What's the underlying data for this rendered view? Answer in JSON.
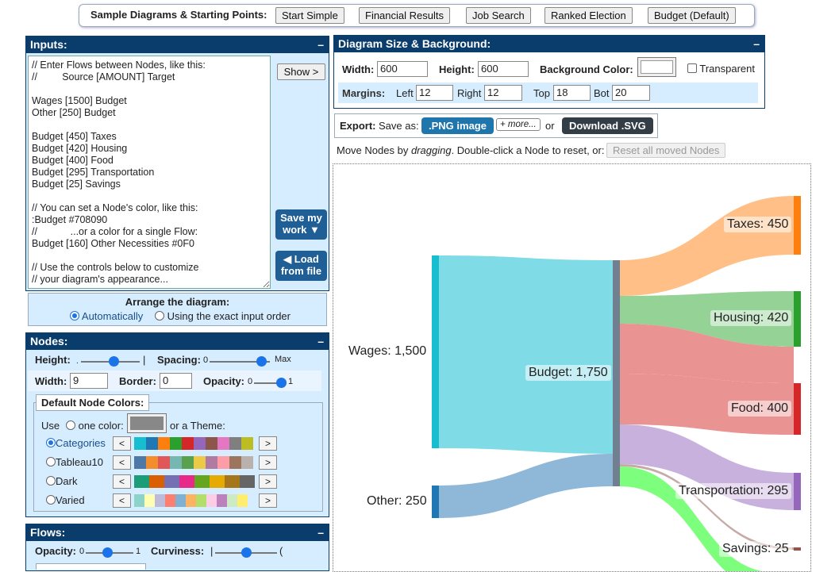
{
  "samples": {
    "title": "Sample Diagrams & Starting Points:",
    "buttons": [
      "Start Simple",
      "Financial Results",
      "Job Search",
      "Ranked Election",
      "Budget (Default)"
    ]
  },
  "inputs": {
    "title": "Inputs:",
    "minimize": "–",
    "text": "// Enter Flows between Nodes, like this:\n//         Source [AMOUNT] Target\n\nWages [1500] Budget\nOther [250] Budget\n\nBudget [450] Taxes\nBudget [420] Housing\nBudget [400] Food\nBudget [295] Transportation\nBudget [25] Savings\n\n// You can set a Node's color, like this:\n:Budget #708090\n//            ...or a color for a single Flow:\nBudget [160] Other Necessities #0F0\n\n// Use the controls below to customize\n// your diagram's appearance...",
    "show_btn": "Show >",
    "save_btn": "Save my work ▼",
    "load_btn": "◀ Load from file"
  },
  "arrange": {
    "title": "Arrange the diagram:",
    "opt_auto": "Automatically",
    "opt_exact": "Using the exact input order"
  },
  "nodes": {
    "title": "Nodes:",
    "height_label": "Height:",
    "spacing_label": "Spacing:",
    "spacing_min": "0",
    "spacing_max": "Max",
    "width_label": "Width:",
    "width_value": "9",
    "border_label": "Border:",
    "border_value": "0",
    "opacity_label": "Opacity:",
    "opacity_min": "0",
    "opacity_max": "1",
    "height_level": 0.55,
    "spacing_level": 0.85,
    "opacity_level": 0.9,
    "colors_title": "Default Node Colors:",
    "use_label": "Use",
    "one_color_label": "one color:",
    "theme_label": "or a Theme:",
    "themes": [
      {
        "name": "Categories",
        "selected": true,
        "colors": [
          "#17becf",
          "#1f77b4",
          "#ff7f0e",
          "#2ca02c",
          "#d62728",
          "#9467bd",
          "#8c564b",
          "#e377c2",
          "#7f7f7f",
          "#bcbd22"
        ]
      },
      {
        "name": "Tableau10",
        "selected": false,
        "colors": [
          "#4e79a7",
          "#f28e2b",
          "#e15759",
          "#76b7b2",
          "#59a14f",
          "#edc948",
          "#b07aa1",
          "#ff9da7",
          "#9c755f",
          "#bab0ac"
        ]
      },
      {
        "name": "Dark",
        "selected": false,
        "colors": [
          "#1b9e77",
          "#d95f02",
          "#7570b3",
          "#e7298a",
          "#66a61e",
          "#e6ab02",
          "#a6761d",
          "#666666"
        ]
      },
      {
        "name": "Varied",
        "selected": false,
        "colors": [
          "#8dd3c7",
          "#ffffb3",
          "#bebada",
          "#fb8072",
          "#80b1d3",
          "#fdb462",
          "#b3de69",
          "#fccde5",
          "#bc80bd",
          "#ccebc5",
          "#ffed6f"
        ]
      }
    ]
  },
  "flows": {
    "title": "Flows:",
    "opacity_label": "Opacity:",
    "opacity_min": "0",
    "opacity_max": "1",
    "curviness_label": "Curviness:",
    "curviness_min": "|",
    "curviness_max": "(",
    "opacity_level": 0.45,
    "curviness_level": 0.5
  },
  "size": {
    "title": "Diagram Size & Background:",
    "width_label": "Width:",
    "width_value": "600",
    "height_label": "Height:",
    "height_value": "600",
    "bg_label": "Background Color:",
    "transparent_label": "Transparent",
    "margins_label": "Margins:",
    "left_label": "Left",
    "left_value": "12",
    "right_label": "Right",
    "right_value": "12",
    "top_label": "Top",
    "top_value": "18",
    "bot_label": "Bot",
    "bot_value": "20"
  },
  "export": {
    "label": "Export:",
    "save_as": "Save as:",
    "png_btn": ".PNG image",
    "more_btn": "+ more...",
    "or": "or",
    "svg_btn": "Download .SVG"
  },
  "move": {
    "text_a": "Move Nodes by",
    "text_em": "dragging",
    "text_b": ". Double-click a Node to reset, or:",
    "reset_btn": "Reset all moved Nodes"
  },
  "diagram": {
    "nodes": [
      {
        "name": "Wages",
        "value": "1,500",
        "label": "Wages: 1,500",
        "color": "#17becf"
      },
      {
        "name": "Other",
        "value": "250",
        "label": "Other: 250",
        "color": "#1f77b4"
      },
      {
        "name": "Budget",
        "value": "1,750",
        "label": "Budget: 1,750",
        "color": "#708090"
      },
      {
        "name": "Taxes",
        "value": "450",
        "label": "Taxes: 450",
        "color": "#ff7f0e"
      },
      {
        "name": "Housing",
        "value": "420",
        "label": "Housing: 420",
        "color": "#2ca02c"
      },
      {
        "name": "Food",
        "value": "400",
        "label": "Food: 400",
        "color": "#d62728"
      },
      {
        "name": "Transportation",
        "value": "295",
        "label": "Transportation: 295",
        "color": "#9467bd"
      },
      {
        "name": "Savings",
        "value": "25",
        "label": "Savings: 25",
        "color": "#8c564b"
      }
    ],
    "flow_colors": {
      "wages": "#7fdbe6",
      "other": "#8fb8d8",
      "taxes": "#ffbf86",
      "housing": "#95d295",
      "food": "#ea9393",
      "transportation": "#c9b1dd",
      "savings": "#c5aaa5",
      "other_necessities": "#7dff7d"
    }
  }
}
